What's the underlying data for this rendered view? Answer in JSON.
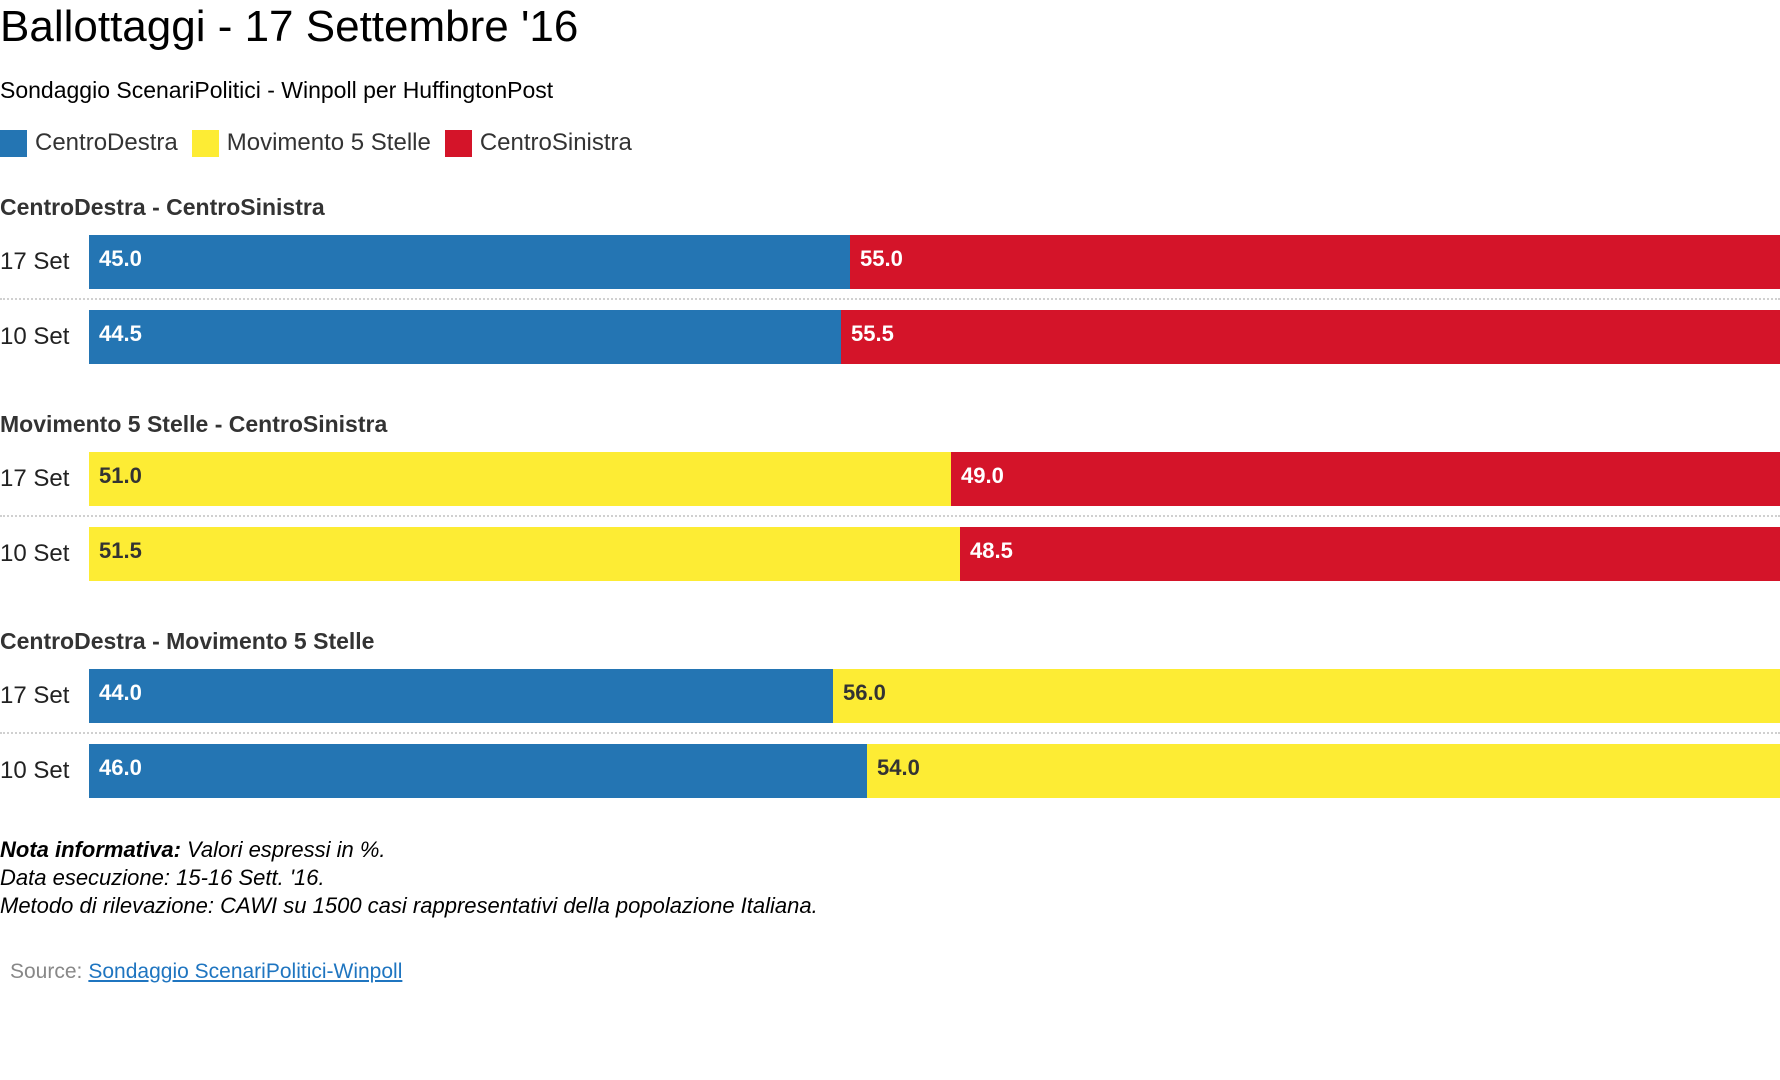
{
  "chart_data": {
    "type": "bar",
    "stacked": true,
    "orientation": "horizontal",
    "title": "Ballottaggi - 17 Settembre '16",
    "subtitle": "Sondaggio ScenariPolitici - Winpoll per HuffingtonPost",
    "legend": {
      "placement": "top-left",
      "items": [
        {
          "name": "CentroDestra",
          "color": "#2475b3"
        },
        {
          "name": "Movimento 5 Stelle",
          "color": "#fdec34"
        },
        {
          "name": "CentroSinistra",
          "color": "#d41429"
        }
      ]
    },
    "groups": [
      {
        "title": "CentroDestra - CentroSinistra",
        "rows": [
          {
            "label": "17 Set",
            "segments": [
              {
                "series": "CentroDestra",
                "value": 45.0,
                "label": "45.0",
                "color": "#2475b3",
                "text": "light"
              },
              {
                "series": "CentroSinistra",
                "value": 55.0,
                "label": "55.0",
                "color": "#d41429",
                "text": "light"
              }
            ]
          },
          {
            "label": "10 Set",
            "segments": [
              {
                "series": "CentroDestra",
                "value": 44.5,
                "label": "44.5",
                "color": "#2475b3",
                "text": "light"
              },
              {
                "series": "CentroSinistra",
                "value": 55.5,
                "label": "55.5",
                "color": "#d41429",
                "text": "light"
              }
            ]
          }
        ]
      },
      {
        "title": "Movimento 5 Stelle - CentroSinistra",
        "rows": [
          {
            "label": "17 Set",
            "segments": [
              {
                "series": "Movimento 5 Stelle",
                "value": 51.0,
                "label": "51.0",
                "color": "#fdec34",
                "text": "dark"
              },
              {
                "series": "CentroSinistra",
                "value": 49.0,
                "label": "49.0",
                "color": "#d41429",
                "text": "light"
              }
            ]
          },
          {
            "label": "10 Set",
            "segments": [
              {
                "series": "Movimento 5 Stelle",
                "value": 51.5,
                "label": "51.5",
                "color": "#fdec34",
                "text": "dark"
              },
              {
                "series": "CentroSinistra",
                "value": 48.5,
                "label": "48.5",
                "color": "#d41429",
                "text": "light"
              }
            ]
          }
        ]
      },
      {
        "title": "CentroDestra - Movimento 5 Stelle",
        "rows": [
          {
            "label": "17 Set",
            "segments": [
              {
                "series": "CentroDestra",
                "value": 44.0,
                "label": "44.0",
                "color": "#2475b3",
                "text": "light"
              },
              {
                "series": "Movimento 5 Stelle",
                "value": 56.0,
                "label": "56.0",
                "color": "#fdec34",
                "text": "dark"
              }
            ]
          },
          {
            "label": "10 Set",
            "segments": [
              {
                "series": "CentroDestra",
                "value": 46.0,
                "label": "46.0",
                "color": "#2475b3",
                "text": "light"
              },
              {
                "series": "Movimento 5 Stelle",
                "value": 54.0,
                "label": "54.0",
                "color": "#fdec34",
                "text": "dark"
              }
            ]
          }
        ]
      }
    ],
    "xlim": [
      0,
      100
    ]
  },
  "notes": {
    "head": "Nota informativa:",
    "line1": " Valori espressi in %.",
    "line2": "Data esecuzione: 15-16 Sett. '16.",
    "line3": "Metodo di rilevazione: CAWI su 1500 casi rappresentativi della popolazione Italiana."
  },
  "source": {
    "label": "Source:",
    "link_text": "Sondaggio ScenariPolitici-Winpoll"
  }
}
